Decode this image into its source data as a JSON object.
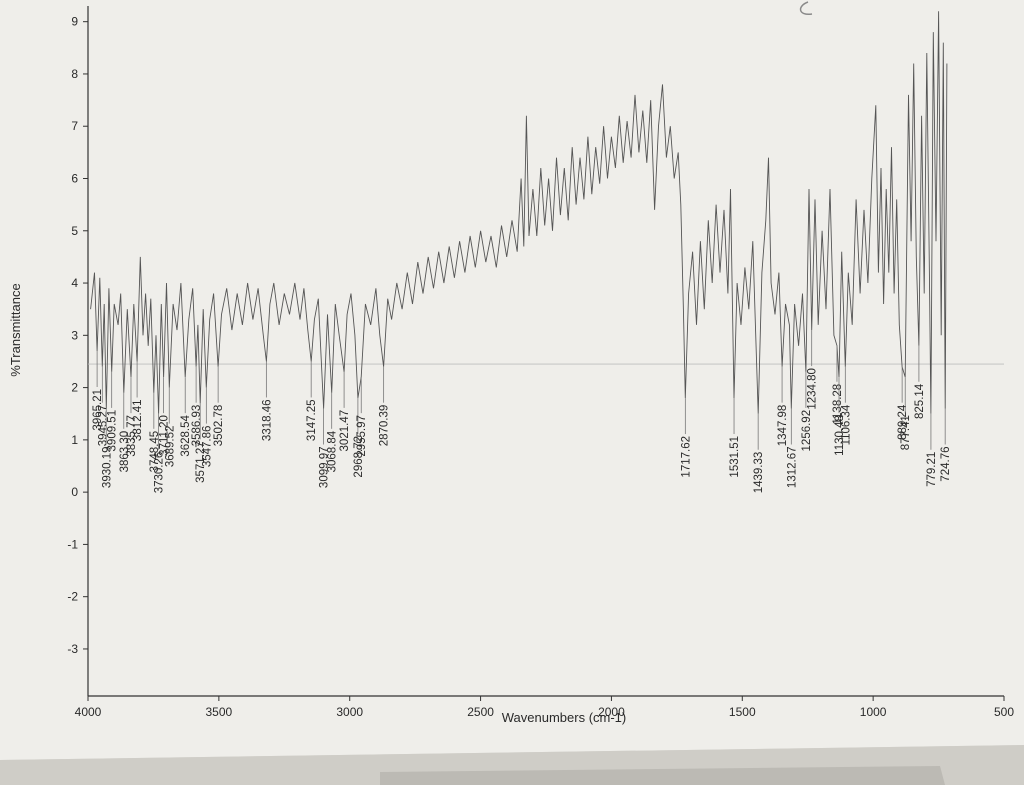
{
  "chart_data": {
    "type": "line",
    "title": "",
    "xlabel": "Wavenumbers (cm-1)",
    "ylabel": "%Transmittance",
    "xlim": [
      4000,
      500
    ],
    "ylim": [
      -3.9,
      9.3
    ],
    "x_ticks": [
      4000,
      3500,
      3000,
      2500,
      2000,
      1500,
      1000,
      500
    ],
    "y_ticks": [
      -3,
      -2,
      -1,
      0,
      1,
      2,
      3,
      4,
      5,
      6,
      7,
      8,
      9
    ],
    "grid": false,
    "series": [
      {
        "values": [
          [
            3990,
            3.5
          ],
          [
            3975,
            4.2
          ],
          [
            3965.21,
            2.7
          ],
          [
            3955,
            4.1
          ],
          [
            3945.27,
            2.4
          ],
          [
            3938,
            3.6
          ],
          [
            3930.19,
            1.6
          ],
          [
            3920,
            3.9
          ],
          [
            3909.51,
            2.3
          ],
          [
            3900,
            3.6
          ],
          [
            3885,
            3.2
          ],
          [
            3875,
            3.8
          ],
          [
            3863.3,
            1.9
          ],
          [
            3850,
            3.5
          ],
          [
            3835.77,
            2.2
          ],
          [
            3825,
            3.6
          ],
          [
            3812.41,
            2.5
          ],
          [
            3800,
            4.5
          ],
          [
            3790,
            3.0
          ],
          [
            3780,
            3.8
          ],
          [
            3770,
            2.8
          ],
          [
            3760,
            3.7
          ],
          [
            3748.45,
            1.9
          ],
          [
            3740,
            3.0
          ],
          [
            3730.26,
            1.5
          ],
          [
            3720,
            3.6
          ],
          [
            3711.2,
            2.2
          ],
          [
            3700,
            4.0
          ],
          [
            3689.52,
            2.0
          ],
          [
            3675,
            3.6
          ],
          [
            3660,
            3.1
          ],
          [
            3645,
            4.0
          ],
          [
            3628.54,
            2.2
          ],
          [
            3615,
            3.3
          ],
          [
            3600,
            3.9
          ],
          [
            3586.93,
            2.4
          ],
          [
            3580,
            3.2
          ],
          [
            3571.27,
            1.7
          ],
          [
            3560,
            3.5
          ],
          [
            3547.86,
            2.0
          ],
          [
            3535,
            3.3
          ],
          [
            3520,
            3.8
          ],
          [
            3502.78,
            2.4
          ],
          [
            3490,
            3.4
          ],
          [
            3470,
            3.9
          ],
          [
            3450,
            3.1
          ],
          [
            3430,
            3.8
          ],
          [
            3410,
            3.2
          ],
          [
            3390,
            4.0
          ],
          [
            3370,
            3.3
          ],
          [
            3350,
            3.9
          ],
          [
            3330,
            3.0
          ],
          [
            3318.46,
            2.5
          ],
          [
            3305,
            3.6
          ],
          [
            3290,
            4.0
          ],
          [
            3270,
            3.2
          ],
          [
            3250,
            3.8
          ],
          [
            3230,
            3.4
          ],
          [
            3210,
            4.0
          ],
          [
            3190,
            3.3
          ],
          [
            3175,
            3.9
          ],
          [
            3160,
            3.1
          ],
          [
            3147.25,
            2.5
          ],
          [
            3135,
            3.3
          ],
          [
            3120,
            3.7
          ],
          [
            3099.97,
            1.6
          ],
          [
            3085,
            3.4
          ],
          [
            3068.84,
            1.9
          ],
          [
            3055,
            3.6
          ],
          [
            3040,
            3.0
          ],
          [
            3021.47,
            2.3
          ],
          [
            3010,
            3.4
          ],
          [
            2995,
            3.8
          ],
          [
            2980,
            3.0
          ],
          [
            2968.72,
            1.8
          ],
          [
            2955.97,
            2.2
          ],
          [
            2940,
            3.6
          ],
          [
            2920,
            3.2
          ],
          [
            2900,
            3.9
          ],
          [
            2885,
            3.0
          ],
          [
            2870.39,
            2.4
          ],
          [
            2855,
            3.7
          ],
          [
            2840,
            3.3
          ],
          [
            2820,
            4.0
          ],
          [
            2800,
            3.5
          ],
          [
            2780,
            4.2
          ],
          [
            2760,
            3.6
          ],
          [
            2740,
            4.4
          ],
          [
            2720,
            3.8
          ],
          [
            2700,
            4.5
          ],
          [
            2680,
            3.9
          ],
          [
            2660,
            4.6
          ],
          [
            2640,
            4.0
          ],
          [
            2620,
            4.7
          ],
          [
            2600,
            4.1
          ],
          [
            2580,
            4.8
          ],
          [
            2560,
            4.2
          ],
          [
            2540,
            4.9
          ],
          [
            2520,
            4.3
          ],
          [
            2500,
            5.0
          ],
          [
            2480,
            4.4
          ],
          [
            2460,
            4.9
          ],
          [
            2440,
            4.3
          ],
          [
            2420,
            5.1
          ],
          [
            2400,
            4.5
          ],
          [
            2380,
            5.2
          ],
          [
            2360,
            4.6
          ],
          [
            2345,
            6.0
          ],
          [
            2335,
            4.7
          ],
          [
            2325,
            7.2
          ],
          [
            2315,
            4.9
          ],
          [
            2300,
            5.8
          ],
          [
            2285,
            4.9
          ],
          [
            2270,
            6.2
          ],
          [
            2255,
            5.1
          ],
          [
            2240,
            6.0
          ],
          [
            2225,
            5.0
          ],
          [
            2210,
            6.4
          ],
          [
            2195,
            5.3
          ],
          [
            2180,
            6.2
          ],
          [
            2165,
            5.2
          ],
          [
            2150,
            6.6
          ],
          [
            2135,
            5.5
          ],
          [
            2120,
            6.4
          ],
          [
            2105,
            5.6
          ],
          [
            2090,
            6.8
          ],
          [
            2075,
            5.7
          ],
          [
            2060,
            6.6
          ],
          [
            2045,
            5.9
          ],
          [
            2030,
            7.0
          ],
          [
            2015,
            6.0
          ],
          [
            2000,
            6.8
          ],
          [
            1985,
            6.2
          ],
          [
            1970,
            7.2
          ],
          [
            1955,
            6.3
          ],
          [
            1940,
            7.1
          ],
          [
            1925,
            6.4
          ],
          [
            1910,
            7.6
          ],
          [
            1895,
            6.5
          ],
          [
            1880,
            7.3
          ],
          [
            1865,
            6.3
          ],
          [
            1850,
            7.5
          ],
          [
            1835,
            5.4
          ],
          [
            1820,
            7.0
          ],
          [
            1805,
            7.8
          ],
          [
            1790,
            6.4
          ],
          [
            1775,
            7.0
          ],
          [
            1760,
            6.0
          ],
          [
            1745,
            6.5
          ],
          [
            1735,
            5.5
          ],
          [
            1725,
            3.5
          ],
          [
            1717.62,
            1.8
          ],
          [
            1705,
            3.8
          ],
          [
            1690,
            4.6
          ],
          [
            1675,
            3.2
          ],
          [
            1660,
            4.8
          ],
          [
            1645,
            3.5
          ],
          [
            1630,
            5.2
          ],
          [
            1615,
            4.0
          ],
          [
            1600,
            5.5
          ],
          [
            1585,
            4.2
          ],
          [
            1570,
            5.4
          ],
          [
            1555,
            3.8
          ],
          [
            1545,
            5.8
          ],
          [
            1531.51,
            1.8
          ],
          [
            1520,
            4.0
          ],
          [
            1505,
            3.2
          ],
          [
            1490,
            4.3
          ],
          [
            1475,
            3.5
          ],
          [
            1460,
            4.8
          ],
          [
            1450,
            3.2
          ],
          [
            1439.33,
            1.5
          ],
          [
            1425,
            4.2
          ],
          [
            1410,
            5.2
          ],
          [
            1400,
            6.4
          ],
          [
            1390,
            4.0
          ],
          [
            1375,
            3.4
          ],
          [
            1360,
            4.2
          ],
          [
            1347.98,
            2.4
          ],
          [
            1335,
            3.6
          ],
          [
            1320,
            3.2
          ],
          [
            1312.67,
            1.6
          ],
          [
            1300,
            3.6
          ],
          [
            1285,
            2.8
          ],
          [
            1270,
            3.8
          ],
          [
            1256.92,
            2.3
          ],
          [
            1245,
            5.8
          ],
          [
            1234.8,
            3.1
          ],
          [
            1222,
            5.6
          ],
          [
            1210,
            3.2
          ],
          [
            1195,
            5.0
          ],
          [
            1180,
            3.5
          ],
          [
            1165,
            5.8
          ],
          [
            1150,
            3.0
          ],
          [
            1138.28,
            2.8
          ],
          [
            1130.48,
            2.2
          ],
          [
            1120,
            4.6
          ],
          [
            1106.34,
            2.4
          ],
          [
            1095,
            4.2
          ],
          [
            1080,
            3.2
          ],
          [
            1065,
            5.6
          ],
          [
            1050,
            3.8
          ],
          [
            1035,
            5.4
          ],
          [
            1020,
            4.0
          ],
          [
            1005,
            6.0
          ],
          [
            990,
            7.4
          ],
          [
            980,
            4.2
          ],
          [
            970,
            6.2
          ],
          [
            960,
            3.6
          ],
          [
            950,
            5.8
          ],
          [
            940,
            4.2
          ],
          [
            930,
            6.6
          ],
          [
            920,
            3.8
          ],
          [
            910,
            5.6
          ],
          [
            900,
            3.2
          ],
          [
            889.24,
            2.4
          ],
          [
            877.41,
            2.2
          ],
          [
            865,
            7.6
          ],
          [
            855,
            4.8
          ],
          [
            845,
            8.2
          ],
          [
            835,
            4.5
          ],
          [
            825.14,
            2.8
          ],
          [
            815,
            7.2
          ],
          [
            805,
            3.8
          ],
          [
            795,
            8.4
          ],
          [
            785,
            4.2
          ],
          [
            779.21,
            1.5
          ],
          [
            770,
            8.8
          ],
          [
            760,
            4.8
          ],
          [
            750,
            9.2
          ],
          [
            740,
            3.0
          ],
          [
            732,
            8.6
          ],
          [
            724.76,
            1.6
          ],
          [
            718,
            8.2
          ]
        ]
      }
    ],
    "peaks": [
      {
        "label": "3965.21",
        "x": 3965.21,
        "y": 2.7
      },
      {
        "label": "3945.27",
        "x": 3945.27,
        "y": 2.4
      },
      {
        "label": "3930.19",
        "x": 3930.19,
        "y": 1.6
      },
      {
        "label": "3909.51",
        "x": 3909.51,
        "y": 2.3
      },
      {
        "label": "3863.30",
        "x": 3863.3,
        "y": 1.9
      },
      {
        "label": "3835.77",
        "x": 3835.77,
        "y": 2.2
      },
      {
        "label": "3812.41",
        "x": 3812.41,
        "y": 2.5
      },
      {
        "label": "3748.45",
        "x": 3748.45,
        "y": 1.9
      },
      {
        "label": "3730.26",
        "x": 3730.26,
        "y": 1.5
      },
      {
        "label": "3711.20",
        "x": 3711.2,
        "y": 2.2
      },
      {
        "label": "3689.52",
        "x": 3689.52,
        "y": 2.0
      },
      {
        "label": "3628.54",
        "x": 3628.54,
        "y": 2.2
      },
      {
        "label": "3586.93",
        "x": 3586.93,
        "y": 2.4
      },
      {
        "label": "3571.27",
        "x": 3571.27,
        "y": 1.7
      },
      {
        "label": "3547.86",
        "x": 3547.86,
        "y": 2.0
      },
      {
        "label": "3502.78",
        "x": 3502.78,
        "y": 2.4
      },
      {
        "label": "3318.46",
        "x": 3318.46,
        "y": 2.5
      },
      {
        "label": "3147.25",
        "x": 3147.25,
        "y": 2.5
      },
      {
        "label": "3099.97",
        "x": 3099.97,
        "y": 1.6
      },
      {
        "label": "3068.84",
        "x": 3068.84,
        "y": 1.9
      },
      {
        "label": "3021.47",
        "x": 3021.47,
        "y": 2.3
      },
      {
        "label": "2968.72",
        "x": 2968.72,
        "y": 1.8
      },
      {
        "label": "2955.97",
        "x": 2955.97,
        "y": 2.2
      },
      {
        "label": "2870.39",
        "x": 2870.39,
        "y": 2.4
      },
      {
        "label": "1717.62",
        "x": 1717.62,
        "y": 1.8
      },
      {
        "label": "1531.51",
        "x": 1531.51,
        "y": 1.8
      },
      {
        "label": "1439.33",
        "x": 1439.33,
        "y": 1.5
      },
      {
        "label": "1347.98",
        "x": 1347.98,
        "y": 2.4
      },
      {
        "label": "1312.67",
        "x": 1312.67,
        "y": 1.6
      },
      {
        "label": "1256.92",
        "x": 1256.92,
        "y": 2.3
      },
      {
        "label": "1234.80",
        "x": 1234.8,
        "y": 3.1
      },
      {
        "label": "1138.28",
        "x": 1138.28,
        "y": 2.8
      },
      {
        "label": "1130.48",
        "x": 1130.48,
        "y": 2.2
      },
      {
        "label": "1106.34",
        "x": 1106.34,
        "y": 2.4
      },
      {
        "label": "889.24",
        "x": 889.24,
        "y": 2.4
      },
      {
        "label": "877.41",
        "x": 877.41,
        "y": 2.2
      },
      {
        "label": "825.14",
        "x": 825.14,
        "y": 2.8
      },
      {
        "label": "779.21",
        "x": 779.21,
        "y": 1.5
      },
      {
        "label": "724.76",
        "x": 724.76,
        "y": 1.6
      }
    ]
  }
}
